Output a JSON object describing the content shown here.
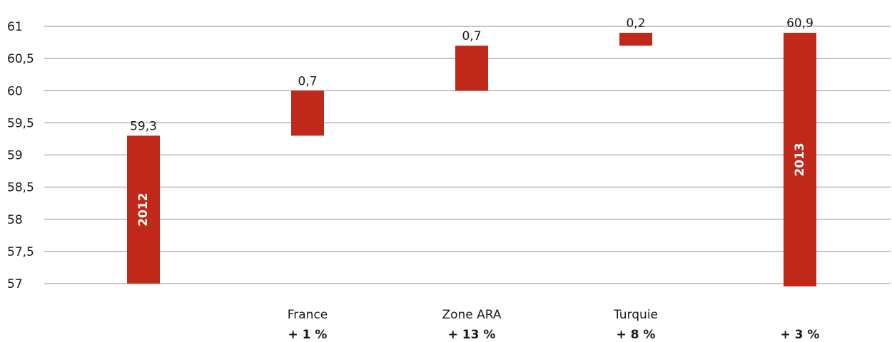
{
  "chart_data": {
    "type": "bar",
    "subtype": "waterfall",
    "bar_color": "#C0291A",
    "ylim": [
      57,
      61
    ],
    "yticks": [
      57,
      57.5,
      58,
      58.5,
      59,
      59.5,
      60,
      60.5,
      61
    ],
    "ytick_labels": [
      "57",
      "57,5",
      "58",
      "58,5",
      "59",
      "59,5",
      "60",
      "60,5",
      "61"
    ],
    "grid": true,
    "bars": [
      {
        "id": "2012",
        "start": 57,
        "end": 59.3,
        "value_label": "59,3",
        "inner_label": "2012",
        "category": "",
        "growth": ""
      },
      {
        "id": "france",
        "start": 59.3,
        "end": 60.0,
        "value_label": "0,7",
        "inner_label": "",
        "category": "France",
        "growth": "+ 1 %"
      },
      {
        "id": "zone-ara",
        "start": 60.0,
        "end": 60.7,
        "value_label": "0,7",
        "inner_label": "",
        "category": "Zone ARA",
        "growth": "+ 13 %"
      },
      {
        "id": "turquie",
        "start": 60.7,
        "end": 60.9,
        "value_label": "0,2",
        "inner_label": "",
        "category": "Turquie",
        "growth": "+ 8 %"
      },
      {
        "id": "2013",
        "start": 57,
        "end": 60.9,
        "value_label": "60,9",
        "inner_label": "2013",
        "category": "",
        "growth": "+ 3 %"
      }
    ]
  }
}
